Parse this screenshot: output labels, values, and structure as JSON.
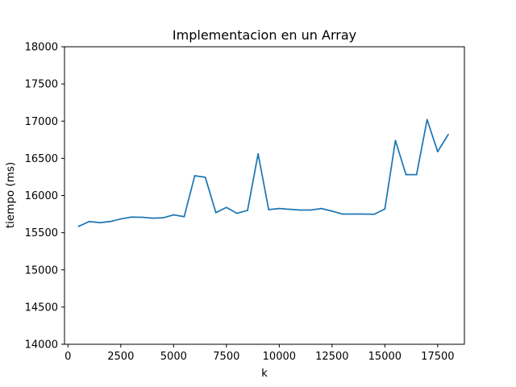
{
  "chart_data": {
    "type": "line",
    "title": "Implementacion en un Array",
    "xlabel": "k",
    "ylabel": "tiempo (ms)",
    "xlim": [
      -165,
      18765
    ],
    "ylim": [
      14000,
      18000
    ],
    "xticks": [
      0,
      2500,
      5000,
      7500,
      10000,
      12500,
      15000,
      17500
    ],
    "yticks": [
      14000,
      14500,
      15000,
      15500,
      16000,
      16500,
      17000,
      17500,
      18000
    ],
    "grid": false,
    "line_color": "#1f77b4",
    "series": [
      {
        "x": [
          500,
          1000,
          1500,
          2000,
          2500,
          3000,
          3500,
          4000,
          4500,
          5000,
          5500,
          6000,
          6500,
          7000,
          7500,
          8000,
          8500,
          9000,
          9500,
          10000,
          10500,
          11000,
          11500,
          12000,
          12500,
          13000,
          13500,
          14000,
          14500,
          15000,
          15500,
          16000,
          16500,
          17000,
          17500,
          18000
        ],
        "y": [
          15585,
          15650,
          15635,
          15650,
          15685,
          15710,
          15708,
          15695,
          15700,
          15740,
          15715,
          16265,
          16245,
          15770,
          15840,
          15760,
          15800,
          16560,
          15810,
          15825,
          15815,
          15805,
          15805,
          15825,
          15790,
          15750,
          15750,
          15750,
          15748,
          15820,
          16740,
          16280,
          16280,
          17020,
          16590,
          16820
        ]
      }
    ]
  }
}
